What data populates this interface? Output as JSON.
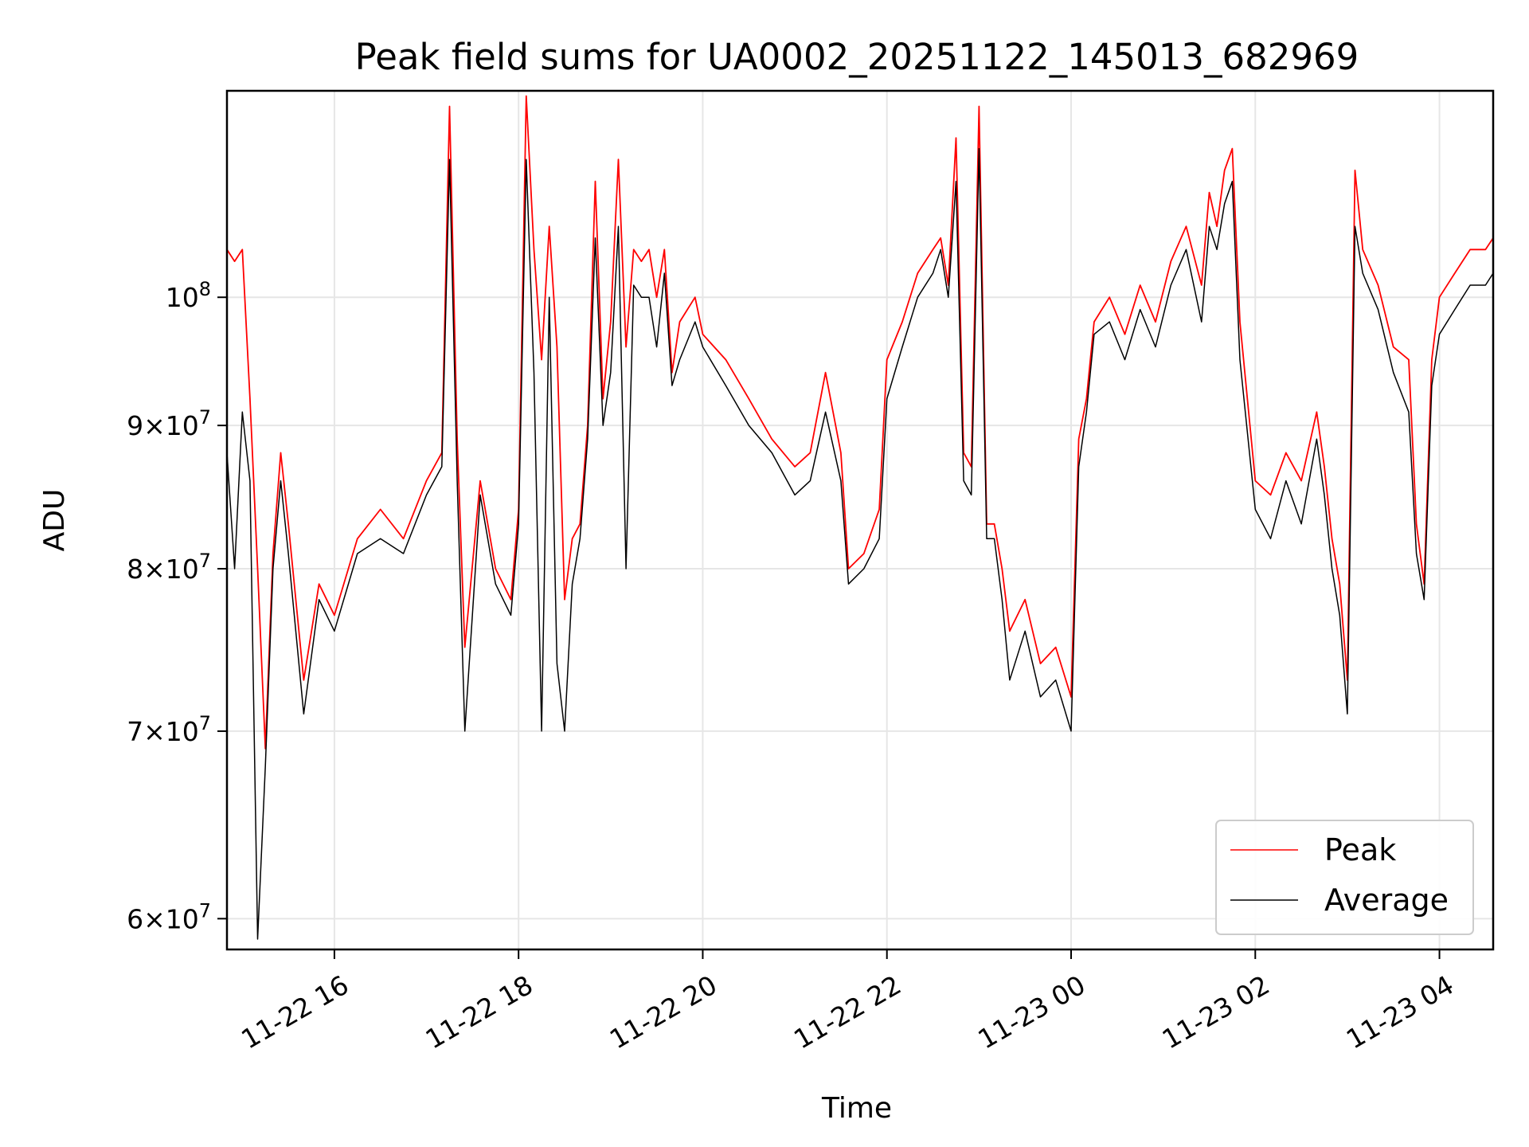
{
  "chart_data": {
    "type": "line",
    "title": "Peak field sums for UA0002_20251122_145013_682969",
    "xlabel": "Time",
    "ylabel": "ADU",
    "yscale": "log",
    "grid": true,
    "legend_position": "lower-right",
    "xlim": [
      "2025-11-22 14:50",
      "2025-11-23 04:35"
    ],
    "ylim": [
      58500000,
      118500000
    ],
    "x_ticks": [
      {
        "value": "2025-11-22 16:00",
        "label": "11-22 16"
      },
      {
        "value": "2025-11-22 18:00",
        "label": "11-22 18"
      },
      {
        "value": "2025-11-22 20:00",
        "label": "11-22 20"
      },
      {
        "value": "2025-11-22 22:00",
        "label": "11-22 22"
      },
      {
        "value": "2025-11-23 00:00",
        "label": "11-23 00"
      },
      {
        "value": "2025-11-23 02:00",
        "label": "11-23 02"
      },
      {
        "value": "2025-11-23 04:00",
        "label": "11-23 04"
      }
    ],
    "y_ticks": [
      {
        "value": 60000000,
        "mantissa": "6",
        "exp": "7"
      },
      {
        "value": 70000000,
        "mantissa": "7",
        "exp": "7"
      },
      {
        "value": 80000000,
        "mantissa": "8",
        "exp": "7"
      },
      {
        "value": 90000000,
        "mantissa": "9",
        "exp": "7"
      },
      {
        "value": 100000000,
        "mantissa": "",
        "exp": "8"
      }
    ],
    "series": [
      {
        "name": "Peak",
        "color": "#ff0000",
        "x": [
          "2025-11-22 14:50",
          "2025-11-22 14:55",
          "2025-11-22 15:00",
          "2025-11-22 15:05",
          "2025-11-22 15:10",
          "2025-11-22 15:15",
          "2025-11-22 15:20",
          "2025-11-22 15:25",
          "2025-11-22 15:30",
          "2025-11-22 15:40",
          "2025-11-22 15:50",
          "2025-11-22 16:00",
          "2025-11-22 16:15",
          "2025-11-22 16:30",
          "2025-11-22 16:45",
          "2025-11-22 17:00",
          "2025-11-22 17:10",
          "2025-11-22 17:15",
          "2025-11-22 17:20",
          "2025-11-22 17:25",
          "2025-11-22 17:35",
          "2025-11-22 17:45",
          "2025-11-22 17:55",
          "2025-11-22 18:00",
          "2025-11-22 18:05",
          "2025-11-22 18:10",
          "2025-11-22 18:15",
          "2025-11-22 18:20",
          "2025-11-22 18:25",
          "2025-11-22 18:30",
          "2025-11-22 18:35",
          "2025-11-22 18:40",
          "2025-11-22 18:45",
          "2025-11-22 18:50",
          "2025-11-22 18:55",
          "2025-11-22 19:00",
          "2025-11-22 19:05",
          "2025-11-22 19:10",
          "2025-11-22 19:15",
          "2025-11-22 19:20",
          "2025-11-22 19:25",
          "2025-11-22 19:30",
          "2025-11-22 19:35",
          "2025-11-22 19:40",
          "2025-11-22 19:45",
          "2025-11-22 19:55",
          "2025-11-22 20:00",
          "2025-11-22 20:15",
          "2025-11-22 20:30",
          "2025-11-22 20:45",
          "2025-11-22 21:00",
          "2025-11-22 21:10",
          "2025-11-22 21:20",
          "2025-11-22 21:30",
          "2025-11-22 21:35",
          "2025-11-22 21:45",
          "2025-11-22 21:55",
          "2025-11-22 22:00",
          "2025-11-22 22:10",
          "2025-11-22 22:20",
          "2025-11-22 22:30",
          "2025-11-22 22:35",
          "2025-11-22 22:40",
          "2025-11-22 22:45",
          "2025-11-22 22:50",
          "2025-11-22 22:55",
          "2025-11-22 23:00",
          "2025-11-22 23:05",
          "2025-11-22 23:10",
          "2025-11-22 23:15",
          "2025-11-22 23:20",
          "2025-11-22 23:30",
          "2025-11-22 23:40",
          "2025-11-22 23:50",
          "2025-11-23 00:00",
          "2025-11-23 00:05",
          "2025-11-23 00:10",
          "2025-11-23 00:15",
          "2025-11-23 00:25",
          "2025-11-23 00:35",
          "2025-11-23 00:45",
          "2025-11-23 00:55",
          "2025-11-23 01:05",
          "2025-11-23 01:15",
          "2025-11-23 01:25",
          "2025-11-23 01:30",
          "2025-11-23 01:35",
          "2025-11-23 01:40",
          "2025-11-23 01:45",
          "2025-11-23 01:50",
          "2025-11-23 02:00",
          "2025-11-23 02:10",
          "2025-11-23 02:20",
          "2025-11-23 02:30",
          "2025-11-23 02:40",
          "2025-11-23 02:45",
          "2025-11-23 02:50",
          "2025-11-23 02:55",
          "2025-11-23 03:00",
          "2025-11-23 03:05",
          "2025-11-23 03:10",
          "2025-11-23 03:20",
          "2025-11-23 03:30",
          "2025-11-23 03:40",
          "2025-11-23 03:45",
          "2025-11-23 03:50",
          "2025-11-23 03:55",
          "2025-11-23 04:00",
          "2025-11-23 04:10",
          "2025-11-23 04:20",
          "2025-11-23 04:30",
          "2025-11-23 04:35"
        ],
        "y": [
          104000000,
          103000000,
          104000000,
          92000000,
          80000000,
          69000000,
          81000000,
          88000000,
          83000000,
          73000000,
          79000000,
          77000000,
          82000000,
          84000000,
          82000000,
          86000000,
          88000000,
          117000000,
          89000000,
          75000000,
          86000000,
          80000000,
          78000000,
          84000000,
          118000000,
          104000000,
          95000000,
          106000000,
          96000000,
          78000000,
          82000000,
          83000000,
          90000000,
          110000000,
          92000000,
          98000000,
          112000000,
          96000000,
          104000000,
          103000000,
          104000000,
          100000000,
          104000000,
          94000000,
          98000000,
          100000000,
          97000000,
          95000000,
          92000000,
          89000000,
          87000000,
          88000000,
          94000000,
          88000000,
          80000000,
          81000000,
          84000000,
          95000000,
          98000000,
          102000000,
          104000000,
          105000000,
          101000000,
          114000000,
          88000000,
          87000000,
          117000000,
          83000000,
          83000000,
          80000000,
          76000000,
          78000000,
          74000000,
          75000000,
          72000000,
          89000000,
          92000000,
          98000000,
          100000000,
          97000000,
          101000000,
          98000000,
          103000000,
          106000000,
          101000000,
          109000000,
          106000000,
          111000000,
          113000000,
          98000000,
          86000000,
          85000000,
          88000000,
          86000000,
          91000000,
          87000000,
          82000000,
          79000000,
          73000000,
          111000000,
          104000000,
          101000000,
          96000000,
          95000000,
          83000000,
          79000000,
          95000000,
          100000000,
          102000000,
          104000000,
          104000000,
          105000000
        ]
      },
      {
        "name": "Average",
        "color": "#000000",
        "x": [
          "2025-11-22 14:50",
          "2025-11-22 14:55",
          "2025-11-22 15:00",
          "2025-11-22 15:05",
          "2025-11-22 15:10",
          "2025-11-22 15:15",
          "2025-11-22 15:20",
          "2025-11-22 15:25",
          "2025-11-22 15:30",
          "2025-11-22 15:40",
          "2025-11-22 15:50",
          "2025-11-22 16:00",
          "2025-11-22 16:15",
          "2025-11-22 16:30",
          "2025-11-22 16:45",
          "2025-11-22 17:00",
          "2025-11-22 17:10",
          "2025-11-22 17:15",
          "2025-11-22 17:20",
          "2025-11-22 17:25",
          "2025-11-22 17:35",
          "2025-11-22 17:45",
          "2025-11-22 17:55",
          "2025-11-22 18:00",
          "2025-11-22 18:05",
          "2025-11-22 18:10",
          "2025-11-22 18:15",
          "2025-11-22 18:20",
          "2025-11-22 18:25",
          "2025-11-22 18:30",
          "2025-11-22 18:35",
          "2025-11-22 18:40",
          "2025-11-22 18:45",
          "2025-11-22 18:50",
          "2025-11-22 18:55",
          "2025-11-22 19:00",
          "2025-11-22 19:05",
          "2025-11-22 19:10",
          "2025-11-22 19:15",
          "2025-11-22 19:20",
          "2025-11-22 19:25",
          "2025-11-22 19:30",
          "2025-11-22 19:35",
          "2025-11-22 19:40",
          "2025-11-22 19:45",
          "2025-11-22 19:55",
          "2025-11-22 20:00",
          "2025-11-22 20:15",
          "2025-11-22 20:30",
          "2025-11-22 20:45",
          "2025-11-22 21:00",
          "2025-11-22 21:10",
          "2025-11-22 21:20",
          "2025-11-22 21:30",
          "2025-11-22 21:35",
          "2025-11-22 21:45",
          "2025-11-22 21:55",
          "2025-11-22 22:00",
          "2025-11-22 22:10",
          "2025-11-22 22:20",
          "2025-11-22 22:30",
          "2025-11-22 22:35",
          "2025-11-22 22:40",
          "2025-11-22 22:45",
          "2025-11-22 22:50",
          "2025-11-22 22:55",
          "2025-11-22 23:00",
          "2025-11-22 23:05",
          "2025-11-22 23:10",
          "2025-11-22 23:15",
          "2025-11-22 23:20",
          "2025-11-22 23:30",
          "2025-11-22 23:40",
          "2025-11-22 23:50",
          "2025-11-23 00:00",
          "2025-11-23 00:05",
          "2025-11-23 00:10",
          "2025-11-23 00:15",
          "2025-11-23 00:25",
          "2025-11-23 00:35",
          "2025-11-23 00:45",
          "2025-11-23 00:55",
          "2025-11-23 01:05",
          "2025-11-23 01:15",
          "2025-11-23 01:25",
          "2025-11-23 01:30",
          "2025-11-23 01:35",
          "2025-11-23 01:40",
          "2025-11-23 01:45",
          "2025-11-23 01:50",
          "2025-11-23 02:00",
          "2025-11-23 02:10",
          "2025-11-23 02:20",
          "2025-11-23 02:30",
          "2025-11-23 02:40",
          "2025-11-23 02:45",
          "2025-11-23 02:50",
          "2025-11-23 02:55",
          "2025-11-23 03:00",
          "2025-11-23 03:05",
          "2025-11-23 03:10",
          "2025-11-23 03:20",
          "2025-11-23 03:30",
          "2025-11-23 03:40",
          "2025-11-23 03:45",
          "2025-11-23 03:50",
          "2025-11-23 03:55",
          "2025-11-23 04:00",
          "2025-11-23 04:10",
          "2025-11-23 04:20",
          "2025-11-23 04:30",
          "2025-11-23 04:35"
        ],
        "y": [
          88000000,
          80000000,
          91000000,
          86000000,
          59000000,
          68000000,
          80000000,
          86000000,
          81000000,
          71000000,
          78000000,
          76000000,
          81000000,
          82000000,
          81000000,
          85000000,
          87000000,
          112000000,
          86000000,
          70000000,
          85000000,
          79000000,
          77000000,
          83000000,
          112000000,
          94000000,
          70000000,
          100000000,
          74000000,
          70000000,
          79000000,
          82000000,
          89000000,
          105000000,
          90000000,
          94000000,
          106000000,
          80000000,
          101000000,
          100000000,
          100000000,
          96000000,
          102000000,
          93000000,
          95000000,
          98000000,
          96000000,
          93000000,
          90000000,
          88000000,
          85000000,
          86000000,
          91000000,
          86000000,
          79000000,
          80000000,
          82000000,
          92000000,
          96000000,
          100000000,
          102000000,
          104000000,
          100000000,
          110000000,
          86000000,
          85000000,
          113000000,
          82000000,
          82000000,
          78000000,
          73000000,
          76000000,
          72000000,
          73000000,
          70000000,
          87000000,
          91000000,
          97000000,
          98000000,
          95000000,
          99000000,
          96000000,
          101000000,
          104000000,
          98000000,
          106000000,
          104000000,
          108000000,
          110000000,
          95000000,
          84000000,
          82000000,
          86000000,
          83000000,
          89000000,
          85000000,
          80000000,
          77000000,
          71000000,
          106000000,
          102000000,
          99000000,
          94000000,
          91000000,
          81000000,
          78000000,
          93000000,
          97000000,
          99000000,
          101000000,
          101000000,
          102000000
        ]
      }
    ]
  }
}
